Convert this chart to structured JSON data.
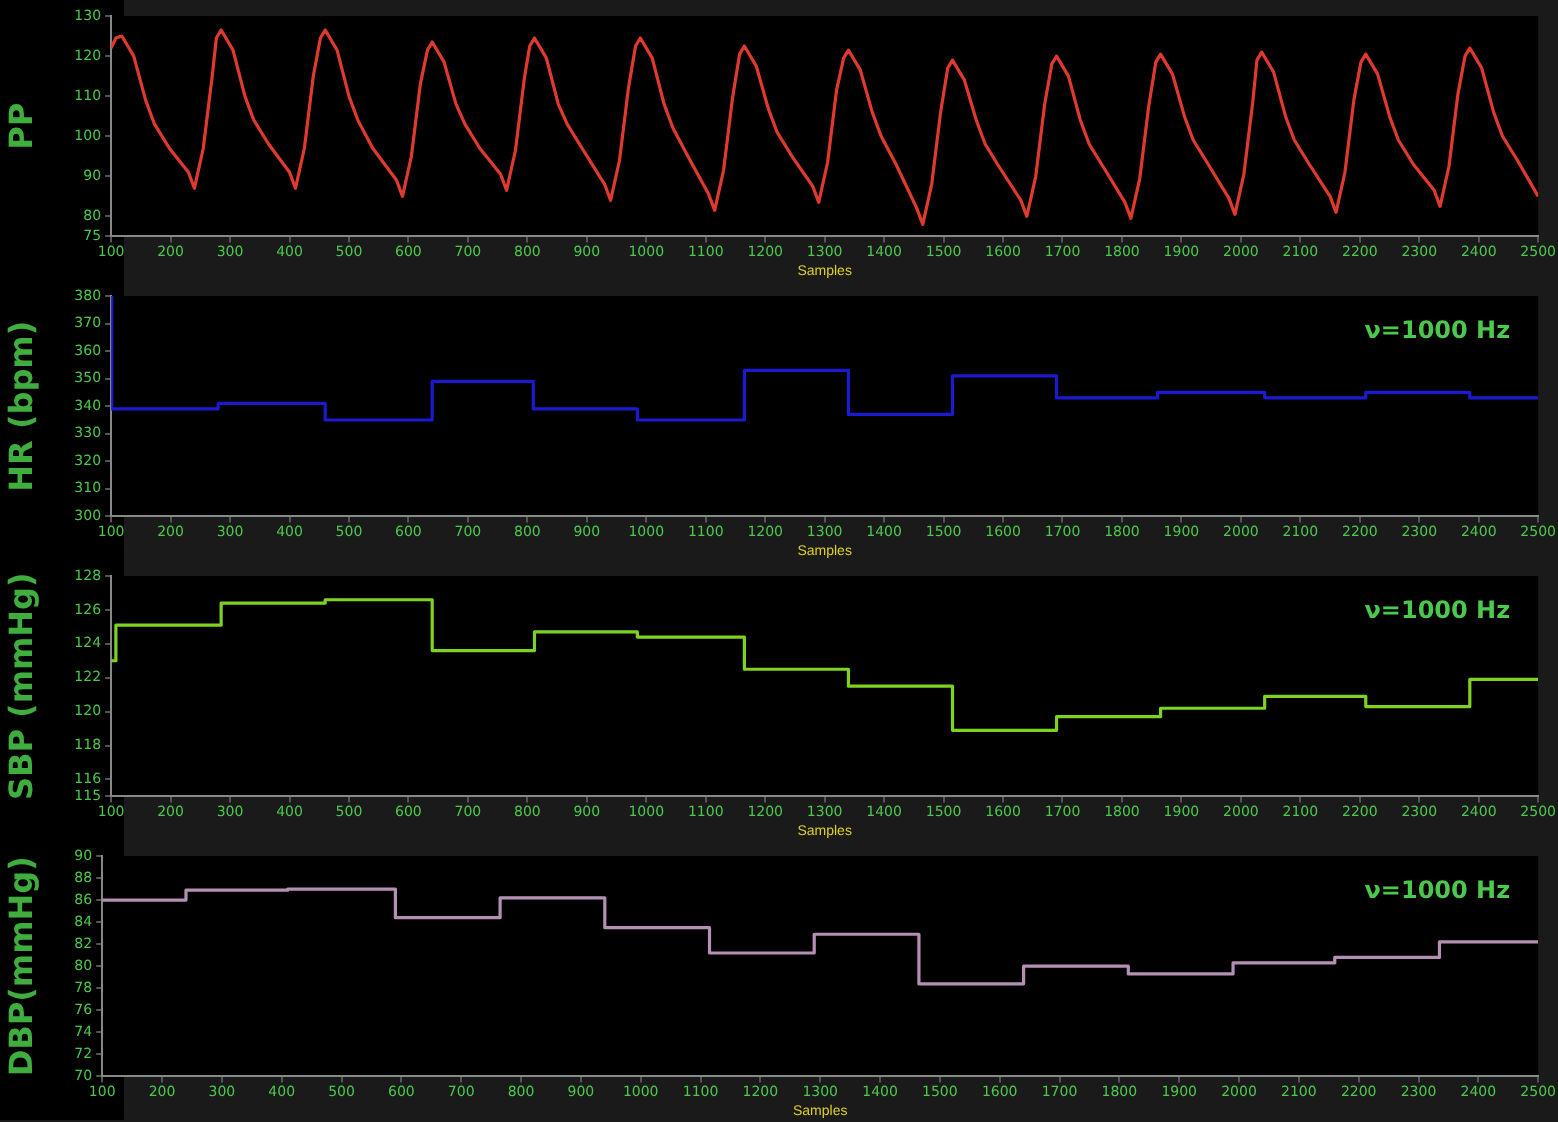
{
  "chart_data": [
    {
      "type": "line",
      "ylabel": "PP",
      "xlabel": "Samples",
      "xlim": [
        100,
        2500
      ],
      "xticks": [
        100,
        200,
        300,
        400,
        500,
        600,
        700,
        800,
        900,
        1000,
        1100,
        1200,
        1300,
        1400,
        1500,
        1600,
        1700,
        1800,
        1900,
        2000,
        2100,
        2200,
        2300,
        2400,
        2500
      ],
      "ylim": [
        75,
        130
      ],
      "yticks": [
        75,
        80,
        90,
        100,
        110,
        120,
        130
      ],
      "legend": false,
      "grid": false,
      "x": [
        100,
        108,
        118,
        138,
        158,
        173,
        198,
        230,
        240,
        255,
        270,
        277,
        285,
        305,
        325,
        340,
        365,
        400,
        410,
        425,
        440,
        452,
        460,
        480,
        500,
        515,
        540,
        580,
        590,
        605,
        620,
        632,
        640,
        660,
        680,
        695,
        720,
        755,
        765,
        780,
        795,
        804,
        812,
        832,
        852,
        867,
        892,
        930,
        940,
        955,
        970,
        982,
        990,
        1010,
        1030,
        1045,
        1070,
        1105,
        1115,
        1130,
        1145,
        1157,
        1165,
        1185,
        1205,
        1220,
        1245,
        1280,
        1290,
        1305,
        1320,
        1332,
        1340,
        1360,
        1380,
        1395,
        1420,
        1455,
        1465,
        1480,
        1495,
        1507,
        1515,
        1535,
        1555,
        1570,
        1595,
        1630,
        1640,
        1655,
        1670,
        1682,
        1690,
        1710,
        1730,
        1745,
        1770,
        1805,
        1815,
        1830,
        1845,
        1857,
        1865,
        1885,
        1905,
        1920,
        1945,
        1980,
        1990,
        2005,
        2020,
        2027,
        2035,
        2055,
        2075,
        2090,
        2115,
        2150,
        2160,
        2175,
        2190,
        2202,
        2210,
        2230,
        2250,
        2265,
        2290,
        2325,
        2335,
        2350,
        2365,
        2377,
        2385,
        2405,
        2425,
        2440,
        2465,
        2500
      ],
      "series": [
        {
          "color": "#e03a2e",
          "values": [
            122,
            124.5,
            125,
            120,
            109,
            103,
            97,
            91,
            87,
            97,
            115,
            124.5,
            126.5,
            121.5,
            110,
            104,
            98,
            91,
            87,
            97,
            115,
            124.5,
            126.5,
            121.5,
            110,
            104,
            97,
            89,
            85,
            95,
            113,
            121.5,
            123.5,
            118.5,
            108,
            103,
            97,
            90.5,
            86.5,
            96.5,
            114.5,
            122.5,
            124.5,
            119.5,
            108,
            103,
            97,
            88,
            84,
            94,
            112,
            122.5,
            124.5,
            119.5,
            108,
            102,
            95,
            85.5,
            81.5,
            91.5,
            109.5,
            120.5,
            122.5,
            117.5,
            107,
            101,
            95,
            87.5,
            83.5,
            93.5,
            111.5,
            119.5,
            121.5,
            116.5,
            106,
            100,
            93,
            82,
            78,
            88,
            106,
            117,
            119,
            114,
            104,
            98,
            92,
            84,
            80,
            90,
            108,
            118,
            120,
            115,
            104,
            98,
            92,
            83.5,
            79.5,
            89.5,
            107.5,
            118.5,
            120.5,
            115.5,
            105,
            99,
            93,
            84.5,
            80.5,
            90.5,
            108.5,
            119,
            121,
            116,
            105,
            99,
            93,
            85,
            81,
            91,
            109,
            118.5,
            120.5,
            115.5,
            105,
            99,
            93,
            86.5,
            82.5,
            92.5,
            110.5,
            120,
            122,
            117,
            106,
            100,
            94,
            85
          ]
        }
      ]
    },
    {
      "type": "step",
      "ylabel": "HR (bpm)",
      "xlabel": "Samples",
      "annotations": [
        "ν=1000 Hz"
      ],
      "xlim": [
        100,
        2500
      ],
      "xticks": [
        100,
        200,
        300,
        400,
        500,
        600,
        700,
        800,
        900,
        1000,
        1100,
        1200,
        1300,
        1400,
        1500,
        1600,
        1700,
        1800,
        1900,
        2000,
        2100,
        2200,
        2300,
        2400,
        2500
      ],
      "ylim": [
        300,
        380
      ],
      "yticks": [
        300,
        310,
        320,
        330,
        340,
        350,
        360,
        370,
        380
      ],
      "legend": false,
      "grid": false,
      "x": [
        100,
        101,
        280,
        460,
        640,
        810,
        985,
        1165,
        1340,
        1515,
        1690,
        1860,
        2040,
        2210,
        2385,
        2500
      ],
      "series": [
        {
          "color": "#1a1ad0",
          "values": [
            380,
            339,
            341,
            335,
            349,
            339,
            335,
            353,
            337,
            351,
            343,
            345,
            343,
            345,
            343,
            343
          ]
        }
      ]
    },
    {
      "type": "step",
      "ylabel": "SBP (mmHg)",
      "xlabel": "Samples",
      "annotations": [
        "ν=1000 Hz"
      ],
      "xlim": [
        100,
        2500
      ],
      "xticks": [
        100,
        200,
        300,
        400,
        500,
        600,
        700,
        800,
        900,
        1000,
        1100,
        1200,
        1300,
        1400,
        1500,
        1600,
        1700,
        1800,
        1900,
        2000,
        2100,
        2200,
        2300,
        2400,
        2500
      ],
      "ylim": [
        115,
        128
      ],
      "yticks": [
        115,
        116,
        118,
        120,
        122,
        124,
        126,
        128
      ],
      "legend": false,
      "grid": false,
      "x": [
        100,
        108,
        285,
        460,
        640,
        812,
        985,
        1165,
        1340,
        1515,
        1690,
        1865,
        2040,
        2210,
        2385,
        2500
      ],
      "series": [
        {
          "color": "#7ed321",
          "values": [
            123,
            125.1,
            126.4,
            126.6,
            123.6,
            124.7,
            124.4,
            122.5,
            121.5,
            118.9,
            119.7,
            120.2,
            120.9,
            120.3,
            121.9,
            121.9
          ]
        }
      ]
    },
    {
      "type": "step",
      "ylabel": "DBP(mmHg)",
      "xlabel": "Samples",
      "annotations": [
        "ν=1000 Hz"
      ],
      "xlim": [
        100,
        2500
      ],
      "xticks": [
        100,
        200,
        300,
        400,
        500,
        600,
        700,
        800,
        900,
        1000,
        1100,
        1200,
        1300,
        1400,
        1500,
        1600,
        1700,
        1800,
        1900,
        2000,
        2100,
        2200,
        2300,
        2400,
        2500
      ],
      "ylim": [
        70,
        90
      ],
      "yticks": [
        70,
        72,
        74,
        76,
        78,
        80,
        82,
        84,
        86,
        88,
        90
      ],
      "legend": false,
      "grid": false,
      "x": [
        100,
        240,
        410,
        590,
        765,
        940,
        1115,
        1290,
        1465,
        1640,
        1815,
        1990,
        2160,
        2335,
        2500
      ],
      "series": [
        {
          "color": "#b590b5",
          "values": [
            86,
            86.9,
            87,
            84.4,
            86.2,
            83.5,
            81.2,
            82.9,
            78.4,
            80,
            79.3,
            80.3,
            80.8,
            82.2,
            82.2
          ]
        }
      ]
    }
  ]
}
